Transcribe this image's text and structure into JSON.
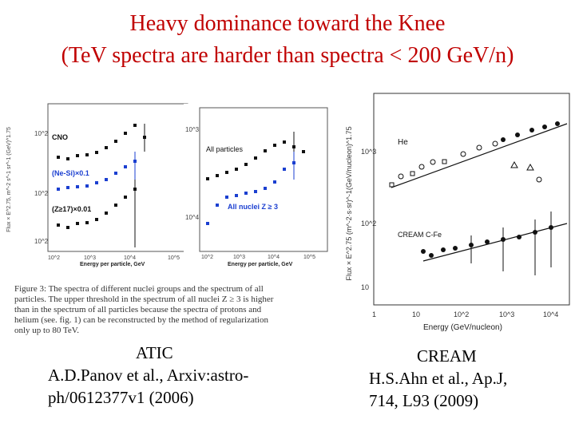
{
  "title": {
    "line1": "Heavy dominance toward the Knee",
    "line2": "(TeV spectra are harder than spectra < 200 GeV/n)",
    "color": "#c00000"
  },
  "atic_figure": {
    "left_plot": {
      "ylabel": "Flux × E^2.75, m^-2 s^-1 sr^-1 (GeV)^1.75",
      "series": [
        "CNO",
        "(Ne-Si)×0.1",
        "(Z≥17)×0.01"
      ],
      "y_ticks": [
        "10^2",
        "10^2",
        "10^2"
      ],
      "x_ticks": [
        "10^2",
        "10^3",
        "10^4",
        "10^5"
      ],
      "xlabel": "Energy per particle, GeV"
    },
    "right_plot": {
      "series": [
        "All particles",
        "All nuclei Z ≥ 3"
      ],
      "y_ticks": [
        "10^3",
        "10^4"
      ],
      "x_ticks": [
        "10^2",
        "10^3",
        "10^4",
        "10^5"
      ],
      "xlabel": "Energy per particle, GeV"
    },
    "caption_lines": [
      "Figure 3: The spectra of different nuclei groups and the spectrum of all",
      "particles. The upper threshold in the spectrum of all nuclei Z ≥ 3 is higher",
      "than in the spectrum of all particles because the spectra of protons and",
      "helium (see. fig. 1) can be reconstructed by the method of regularization",
      "only up to 80 TeV."
    ]
  },
  "atic_credit": {
    "line1": "ATIC",
    "line2": "A.D.Panov et al., Arxiv:astro-",
    "line3": "ph/0612377v1 (2006)"
  },
  "cream_figure": {
    "ylabel": "Flux × E^2.75 (m^-2·s·sr)^-1(GeV/nucleon)^1.75",
    "label_he": "He",
    "label_cfe": "CREAM C-Fe",
    "y_ticks": [
      "10^3",
      "10^2",
      "10"
    ],
    "x_ticks": [
      "1",
      "10",
      "10^2",
      "10^3",
      "10^4"
    ],
    "xlabel": "Energy (GeV/nucleon)"
  },
  "cream_credit": {
    "line1": "CREAM",
    "line2": "H.S.Ahn et al., Ap.J,",
    "line3": "714, L93 (2009)"
  }
}
